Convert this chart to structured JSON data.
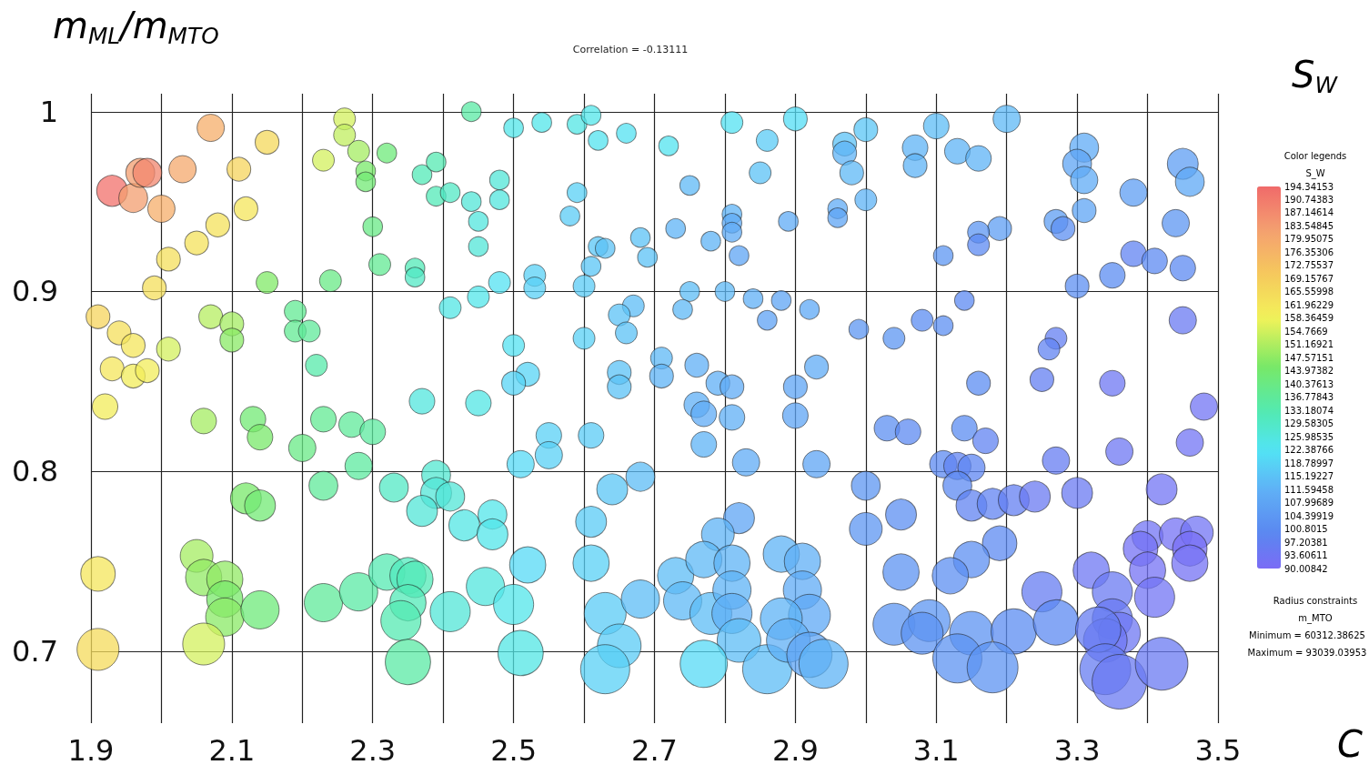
{
  "chart_data": {
    "type": "bubble",
    "title": "Correlation = -0.13111",
    "xlabel": "C",
    "ylabel": "m$_{ML}$/m$_{MTO}$",
    "legend_title": "Color legends",
    "clabel": "S_W",
    "annotations": [
      "S$_{W}$",
      "Radius constraints",
      "m_MTO",
      "Minimum = 60312.38625",
      "Maximum = 93039.03953"
    ],
    "xlim": [
      1.9,
      3.5
    ],
    "ylim": [
      0.66,
      1.01
    ],
    "xticks": [
      1.9,
      {
        "value": 2.0,
        "label": null
      },
      2.1,
      {
        "value": 2.2,
        "label": null
      },
      2.3,
      {
        "value": 2.4,
        "label": null
      },
      2.5,
      {
        "value": 2.6,
        "label": null
      },
      2.7,
      {
        "value": 2.8,
        "label": null
      },
      2.9,
      {
        "value": 3.0,
        "label": null
      },
      3.1,
      {
        "value": 3.2,
        "label": null
      },
      3.3,
      {
        "value": 3.4,
        "label": null
      },
      3.5
    ],
    "yticks": [
      0.7,
      0.8,
      0.9,
      1
    ],
    "grid": true,
    "clim": [
      90.00842,
      194.34153
    ],
    "cticks": [
      194.34153,
      190.74383,
      187.14614,
      183.54845,
      179.95075,
      176.35306,
      172.75537,
      169.15767,
      165.55998,
      161.96229,
      158.36459,
      154.7669,
      151.16921,
      147.57151,
      143.97382,
      140.37613,
      136.77843,
      133.18074,
      129.58305,
      125.98535,
      122.38766,
      118.78997,
      115.19227,
      111.59458,
      107.99689,
      104.39919,
      100.8015,
      97.20381,
      93.60611,
      90.00842
    ],
    "x": [
      1.93,
      1.96,
      1.97,
      1.98,
      2.0,
      2.03,
      2.07,
      2.11,
      2.15,
      2.12,
      2.08,
      2.05,
      2.01,
      1.99,
      1.91,
      1.94,
      1.96,
      1.93,
      1.96,
      1.98,
      1.92,
      2.01,
      2.07,
      2.1,
      2.1,
      2.15,
      2.24,
      2.19,
      2.19,
      2.21,
      2.22,
      2.26,
      2.26,
      2.23,
      2.28,
      2.32,
      2.29,
      2.29,
      2.3,
      2.31,
      2.36,
      2.36,
      2.44,
      2.37,
      2.39,
      2.39,
      2.41,
      2.44,
      2.45,
      2.45,
      2.48,
      2.48,
      2.5,
      2.54,
      2.59,
      2.61,
      2.62,
      2.66,
      2.59,
      2.58,
      2.68,
      2.62,
      2.63,
      2.69,
      2.61,
      2.53,
      2.53,
      2.48,
      2.6,
      2.45,
      2.41,
      2.67,
      2.65,
      2.66,
      2.6,
      2.5,
      2.52,
      2.5,
      2.65,
      2.65,
      2.45,
      2.37,
      2.06,
      2.13,
      2.14,
      2.2,
      2.23,
      2.27,
      2.3,
      2.28,
      2.23,
      2.33,
      2.39,
      2.39,
      2.41,
      2.37,
      2.43,
      2.47,
      2.47,
      2.51,
      2.55,
      2.55,
      2.61,
      2.64,
      2.61,
      2.68,
      2.12,
      2.14,
      2.05,
      2.06,
      2.09,
      2.09,
      2.09,
      2.14,
      2.06,
      1.91,
      1.91,
      2.23,
      2.28,
      2.32,
      2.35,
      2.36,
      2.35,
      2.34,
      2.35,
      2.41,
      2.46,
      2.5,
      2.51,
      2.52,
      2.61,
      2.63,
      2.65,
      2.63,
      2.68,
      2.81,
      2.9,
      2.72,
      2.86,
      2.85,
      2.75,
      2.97,
      2.97,
      3.0,
      2.98,
      3.0,
      2.96,
      2.96,
      3.1,
      3.07,
      3.07,
      3.13,
      3.16,
      3.2,
      3.31,
      3.3,
      3.31,
      3.31,
      3.45,
      3.46,
      3.38,
      3.44,
      3.27,
      3.28,
      3.19,
      3.16,
      3.16,
      3.11,
      3.38,
      3.41,
      3.45,
      3.35,
      3.3,
      2.81,
      2.81,
      2.81,
      2.82,
      2.73,
      2.78,
      2.89,
      2.75,
      2.74,
      2.8,
      2.84,
      2.88,
      2.86,
      2.92,
      2.99,
      3.04,
      3.08,
      3.11,
      3.14,
      3.27,
      3.26,
      3.25,
      3.16,
      3.35,
      3.45,
      3.48,
      2.71,
      2.71,
      2.76,
      2.79,
      2.81,
      2.9,
      2.93,
      2.76,
      2.77,
      2.81,
      2.9,
      2.77,
      2.83,
      2.93,
      3.0,
      3.05,
      3.0,
      3.03,
      3.06,
      3.14,
      3.17,
      3.27,
      3.36,
      3.46,
      3.11,
      3.13,
      3.15,
      3.13,
      3.15,
      3.18,
      3.21,
      3.24,
      3.3,
      3.42,
      2.82,
      2.79,
      3.19,
      3.15,
      3.12,
      3.05,
      3.32,
      3.35,
      3.25,
      3.4,
      3.44,
      3.47,
      3.39,
      3.46,
      3.46,
      3.4,
      3.41,
      3.35,
      3.36,
      3.34,
      3.04,
      3.09,
      3.08,
      3.15,
      3.21,
      3.27,
      3.33,
      3.13,
      3.18,
      3.34,
      3.36,
      3.42,
      2.73,
      2.74,
      2.77,
      2.81,
      2.78,
      2.81,
      2.81,
      2.82,
      2.77,
      2.86,
      2.88,
      2.91,
      2.91,
      2.92,
      2.88,
      2.89,
      2.92,
      2.94
    ],
    "values": [
      0.956,
      0.952,
      0.966,
      0.966,
      0.946,
      0.968,
      0.991,
      0.968,
      0.983,
      0.946,
      0.937,
      0.927,
      0.918,
      0.902,
      0.886,
      0.877,
      0.87,
      0.857,
      0.853,
      0.856,
      0.836,
      0.868,
      0.886,
      0.882,
      0.873,
      0.905,
      0.906,
      0.889,
      0.878,
      0.878,
      0.859,
      0.996,
      0.987,
      0.973,
      0.978,
      0.977,
      0.967,
      0.961,
      0.936,
      0.915,
      0.913,
      0.908,
      1.0,
      0.965,
      0.972,
      0.953,
      0.955,
      0.95,
      0.939,
      0.925,
      0.962,
      0.951,
      0.991,
      0.994,
      0.993,
      0.998,
      0.984,
      0.988,
      0.955,
      0.942,
      0.93,
      0.925,
      0.924,
      0.919,
      0.914,
      0.909,
      0.902,
      0.905,
      0.903,
      0.897,
      0.891,
      0.892,
      0.887,
      0.877,
      0.874,
      0.87,
      0.854,
      0.849,
      0.855,
      0.847,
      0.838,
      0.839,
      0.828,
      0.829,
      0.819,
      0.813,
      0.829,
      0.826,
      0.822,
      0.803,
      0.792,
      0.791,
      0.798,
      0.788,
      0.786,
      0.778,
      0.77,
      0.776,
      0.765,
      0.804,
      0.82,
      0.809,
      0.82,
      0.79,
      0.772,
      0.797,
      0.785,
      0.781,
      0.753,
      0.741,
      0.74,
      0.729,
      0.719,
      0.723,
      0.704,
      0.743,
      0.701,
      0.727,
      0.733,
      0.744,
      0.742,
      0.74,
      0.727,
      0.717,
      0.694,
      0.722,
      0.736,
      0.726,
      0.699,
      0.748,
      0.749,
      0.721,
      0.703,
      0.69,
      0.729,
      0.994,
      0.996,
      0.981,
      0.984,
      0.966,
      0.959,
      0.982,
      0.977,
      0.99,
      0.966,
      0.951,
      0.946,
      0.941,
      0.992,
      0.98,
      0.97,
      0.978,
      0.974,
      0.996,
      0.98,
      0.971,
      0.962,
      0.945,
      0.971,
      0.961,
      0.955,
      0.938,
      0.939,
      0.935,
      0.935,
      0.933,
      0.926,
      0.92,
      0.921,
      0.917,
      0.913,
      0.909,
      0.903,
      0.943,
      0.938,
      0.933,
      0.92,
      0.935,
      0.928,
      0.939,
      0.9,
      0.89,
      0.9,
      0.896,
      0.895,
      0.884,
      0.89,
      0.879,
      0.874,
      0.884,
      0.881,
      0.895,
      0.874,
      0.868,
      0.851,
      0.849,
      0.849,
      0.884,
      0.836,
      0.863,
      0.853,
      0.859,
      0.849,
      0.847,
      0.847,
      0.858,
      0.837,
      0.832,
      0.83,
      0.831,
      0.815,
      0.805,
      0.804,
      0.792,
      0.776,
      0.768,
      0.824,
      0.822,
      0.824,
      0.817,
      0.806,
      0.811,
      0.816,
      0.804,
      0.803,
      0.802,
      0.792,
      0.781,
      0.782,
      0.784,
      0.786,
      0.788,
      0.79,
      0.774,
      0.765,
      0.76,
      0.751,
      0.742,
      0.744,
      0.745,
      0.733,
      0.733,
      0.764,
      0.765,
      0.766,
      0.757,
      0.757,
      0.749,
      0.745,
      0.73,
      0.718,
      0.71,
      0.706,
      0.715,
      0.717,
      0.71,
      0.71,
      0.711,
      0.716,
      0.712,
      0.696,
      0.691,
      0.69,
      0.683,
      0.693,
      0.742,
      0.728,
      0.751,
      0.749,
      0.721,
      0.734,
      0.721,
      0.706,
      0.693,
      0.69,
      0.754,
      0.75,
      0.734,
      0.72,
      0.718,
      0.706,
      0.698,
      0.693
    ],
    "sizes": [
      0.32,
      0.28,
      0.28,
      0.28,
      0.25,
      0.25,
      0.25,
      0.19,
      0.19,
      0.19,
      0.19,
      0.19,
      0.19,
      0.19,
      0.19,
      0.19,
      0.19,
      0.19,
      0.19,
      0.19,
      0.22,
      0.19,
      0.19,
      0.19,
      0.19,
      0.16,
      0.16,
      0.16,
      0.16,
      0.16,
      0.16,
      0.16,
      0.16,
      0.16,
      0.16,
      0.13,
      0.13,
      0.13,
      0.13,
      0.16,
      0.13,
      0.13,
      0.13,
      0.13,
      0.13,
      0.13,
      0.13,
      0.13,
      0.13,
      0.13,
      0.13,
      0.13,
      0.13,
      0.13,
      0.13,
      0.13,
      0.13,
      0.13,
      0.13,
      0.13,
      0.13,
      0.13,
      0.13,
      0.13,
      0.13,
      0.16,
      0.16,
      0.16,
      0.16,
      0.16,
      0.16,
      0.16,
      0.16,
      0.16,
      0.16,
      0.16,
      0.19,
      0.19,
      0.19,
      0.19,
      0.22,
      0.22,
      0.22,
      0.22,
      0.22,
      0.25,
      0.22,
      0.22,
      0.22,
      0.25,
      0.28,
      0.28,
      0.28,
      0.32,
      0.28,
      0.32,
      0.32,
      0.28,
      0.32,
      0.25,
      0.22,
      0.25,
      0.22,
      0.32,
      0.32,
      0.28,
      0.32,
      0.32,
      0.36,
      0.44,
      0.44,
      0.44,
      0.49,
      0.49,
      0.59,
      0.4,
      0.59,
      0.49,
      0.49,
      0.44,
      0.44,
      0.44,
      0.44,
      0.54,
      0.69,
      0.54,
      0.49,
      0.54,
      0.69,
      0.44,
      0.44,
      0.59,
      0.64,
      0.81,
      0.49,
      0.16,
      0.19,
      0.13,
      0.16,
      0.16,
      0.13,
      0.19,
      0.19,
      0.19,
      0.19,
      0.16,
      0.13,
      0.13,
      0.22,
      0.22,
      0.19,
      0.22,
      0.22,
      0.25,
      0.28,
      0.28,
      0.25,
      0.19,
      0.32,
      0.28,
      0.25,
      0.25,
      0.19,
      0.19,
      0.19,
      0.16,
      0.16,
      0.13,
      0.22,
      0.22,
      0.22,
      0.22,
      0.19,
      0.13,
      0.13,
      0.13,
      0.13,
      0.13,
      0.13,
      0.13,
      0.13,
      0.13,
      0.13,
      0.13,
      0.13,
      0.13,
      0.13,
      0.13,
      0.16,
      0.16,
      0.13,
      0.13,
      0.16,
      0.16,
      0.19,
      0.19,
      0.22,
      0.25,
      0.25,
      0.16,
      0.19,
      0.19,
      0.19,
      0.19,
      0.19,
      0.19,
      0.22,
      0.22,
      0.22,
      0.22,
      0.22,
      0.25,
      0.25,
      0.28,
      0.32,
      0.36,
      0.22,
      0.22,
      0.22,
      0.22,
      0.25,
      0.25,
      0.25,
      0.25,
      0.25,
      0.25,
      0.28,
      0.32,
      0.32,
      0.32,
      0.32,
      0.32,
      0.32,
      0.32,
      0.36,
      0.4,
      0.44,
      0.44,
      0.44,
      0.44,
      0.54,
      0.54,
      0.32,
      0.36,
      0.36,
      0.4,
      0.4,
      0.44,
      0.44,
      0.54,
      0.54,
      0.59,
      0.64,
      0.59,
      0.59,
      0.59,
      0.64,
      0.69,
      0.69,
      0.69,
      0.81,
      0.87,
      0.87,
      1,
      0.93,
      0.44,
      0.49,
      0.44,
      0.44,
      0.59,
      0.49,
      0.54,
      0.64,
      0.75,
      0.81,
      0.44,
      0.44,
      0.49,
      0.59,
      0.59,
      0.64,
      0.69,
      0.81
    ],
    "cvalues": [
      193,
      183,
      183,
      188,
      178,
      180,
      178,
      167,
      166,
      162,
      163,
      163,
      164,
      164,
      167,
      164,
      162,
      162,
      160,
      160,
      160,
      155,
      152,
      150,
      147,
      146,
      140,
      138,
      138,
      137,
      134,
      155,
      153,
      155,
      150,
      142,
      145,
      143,
      140,
      138,
      132,
      130,
      135,
      132,
      133,
      132,
      130,
      127,
      126,
      127,
      127,
      126,
      124,
      124,
      125,
      124,
      123,
      122,
      118,
      117,
      115,
      116,
      115,
      115,
      116,
      118,
      118,
      122,
      117,
      124,
      125,
      114,
      115,
      115,
      118,
      122,
      119,
      119,
      115,
      115,
      125,
      126,
      150,
      143,
      145,
      140,
      138,
      137,
      136,
      136,
      137,
      130,
      128,
      127,
      127,
      127,
      125,
      124,
      124,
      120,
      118,
      118,
      117,
      116,
      117,
      114,
      145,
      143,
      150,
      148,
      148,
      145,
      147,
      142,
      155,
      162,
      165,
      137,
      135,
      133,
      131,
      132,
      132,
      133,
      135,
      127,
      126,
      124,
      125,
      120,
      118,
      117,
      117,
      118,
      114,
      122,
      121,
      123,
      117,
      115,
      113,
      115,
      112,
      116,
      113,
      112,
      110,
      108,
      114,
      112,
      112,
      112,
      112,
      113,
      110,
      108,
      110,
      108,
      106,
      109,
      106,
      104,
      106,
      102,
      106,
      104,
      100,
      104,
      98,
      100,
      100,
      101,
      102,
      112,
      110,
      110,
      108,
      112,
      112,
      110,
      114,
      113,
      113,
      111,
      108,
      107,
      109,
      104,
      104,
      101,
      102,
      100,
      97,
      98,
      97,
      101,
      94,
      95,
      93,
      113,
      112,
      111,
      111,
      110,
      108,
      110,
      111,
      110,
      111,
      108,
      112,
      110,
      108,
      104,
      102,
      104,
      102,
      100,
      101,
      98,
      96,
      94,
      93,
      100,
      98,
      99,
      100,
      98,
      98,
      97,
      95,
      95,
      93,
      108,
      112,
      100,
      102,
      102,
      103,
      94,
      95,
      96,
      93,
      92,
      93,
      92,
      91,
      92,
      92,
      93,
      95,
      94,
      94,
      104,
      104,
      103,
      103,
      101,
      100,
      96,
      103,
      103,
      96,
      95,
      95,
      114,
      113,
      113,
      112,
      114,
      112,
      111,
      114,
      120,
      114,
      112,
      111,
      110,
      109,
      112,
      111,
      108,
      112
    ]
  }
}
